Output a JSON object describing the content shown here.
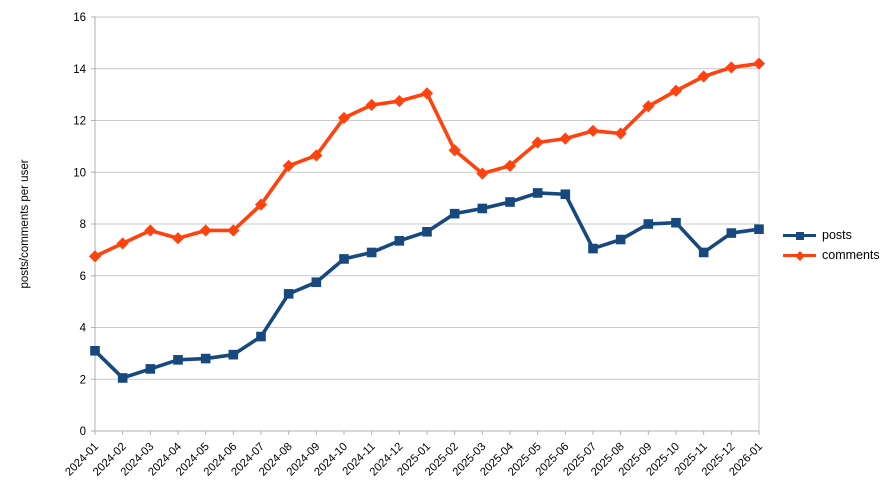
{
  "chart_data": {
    "type": "line",
    "title": "",
    "xlabel": "",
    "ylabel": "posts/comments per user",
    "ylim": [
      0,
      16
    ],
    "ytick_step": 2,
    "grid": "horizontal-major",
    "legend_position": "right",
    "categories": [
      "2024-01",
      "2024-02",
      "2024-03",
      "2024-04",
      "2024-05",
      "2024-06",
      "2024-07",
      "2024-08",
      "2024-09",
      "2024-10",
      "2024-11",
      "2024-12",
      "2025-01",
      "2025-02",
      "2025-03",
      "2025-04",
      "2025-05",
      "2025-06",
      "2025-07",
      "2025-08",
      "2025-09",
      "2025-10",
      "2025-11",
      "2025-12",
      "2026-01"
    ],
    "series": [
      {
        "name": "posts",
        "marker": "square",
        "color": "#17497E",
        "values": [
          3.1,
          2.05,
          2.4,
          2.75,
          2.8,
          2.95,
          3.65,
          5.3,
          5.75,
          6.65,
          6.9,
          7.35,
          7.7,
          8.4,
          8.6,
          8.85,
          9.2,
          9.15,
          7.05,
          7.4,
          8.0,
          8.05,
          6.9,
          7.65,
          7.8
        ]
      },
      {
        "name": "comments",
        "marker": "diamond",
        "color": "#FF420E",
        "values": [
          6.75,
          7.25,
          7.75,
          7.45,
          7.75,
          7.75,
          8.75,
          10.25,
          10.65,
          12.1,
          12.6,
          12.75,
          13.05,
          10.85,
          9.95,
          10.25,
          11.15,
          11.3,
          11.6,
          11.5,
          12.55,
          13.15,
          13.7,
          14.05,
          14.2
        ]
      }
    ],
    "axis_color": "#b1b1b1",
    "grid_color": "#c9c9c9",
    "text_color": "#000000"
  }
}
